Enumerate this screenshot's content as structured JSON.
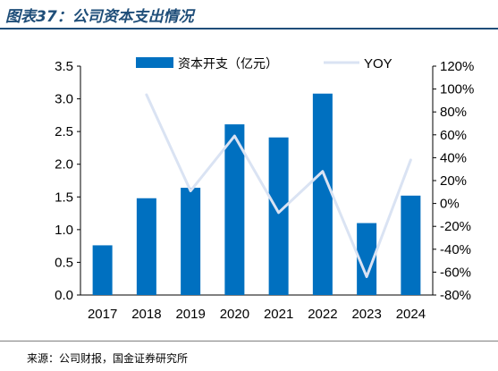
{
  "title": "图表37：公司资本支出情况",
  "source": "来源：公司财报，国金证券研究所",
  "chart_data": {
    "type": "bar",
    "categories": [
      "2017",
      "2018",
      "2019",
      "2020",
      "2021",
      "2022",
      "2023",
      "2024"
    ],
    "series": [
      {
        "name": "资本开支（亿元）",
        "type": "bar",
        "axis": "left",
        "color": "#0070c0",
        "values": [
          0.76,
          1.48,
          1.64,
          2.61,
          2.41,
          3.08,
          1.1,
          1.52
        ]
      },
      {
        "name": "YOY",
        "type": "line",
        "axis": "right",
        "color": "#dae3f3",
        "values": [
          null,
          95,
          11,
          59,
          -8,
          28,
          -64,
          38
        ]
      }
    ],
    "left_axis": {
      "min": 0,
      "max": 3.5,
      "step": 0.5,
      "ticks": [
        "0.0",
        "0.5",
        "1.0",
        "1.5",
        "2.0",
        "2.5",
        "3.0",
        "3.5"
      ]
    },
    "right_axis": {
      "min": -80,
      "max": 120,
      "step": 20,
      "ticks": [
        "-80%",
        "-60%",
        "-40%",
        "-20%",
        "0%",
        "20%",
        "40%",
        "60%",
        "80%",
        "100%",
        "120%"
      ]
    },
    "legend_position": "top",
    "grid": false
  }
}
